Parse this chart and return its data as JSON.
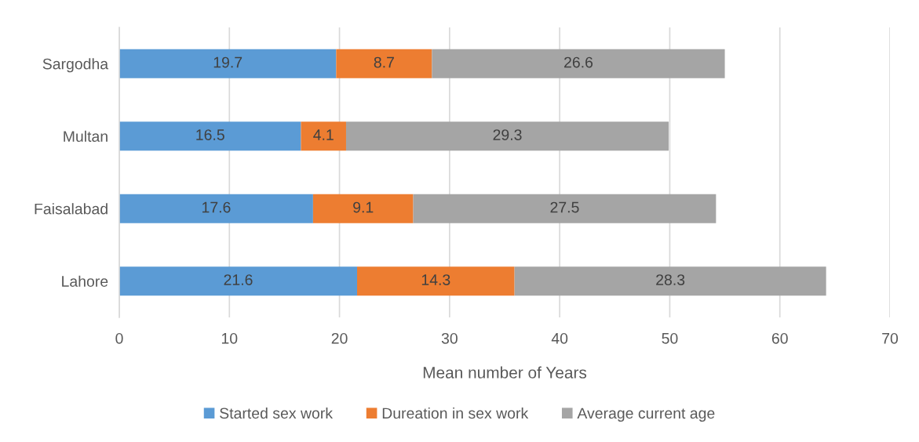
{
  "chart_data": {
    "type": "bar",
    "orientation": "horizontal",
    "stacked": true,
    "xlabel": "Mean number of Years",
    "categories": [
      "Sargodha",
      "Multan",
      "Faisalabad",
      "Lahore"
    ],
    "series": [
      {
        "name": "Started sex work",
        "color": "#5b9bd5",
        "values": [
          19.7,
          16.5,
          17.6,
          21.6
        ]
      },
      {
        "name": "Dureation in sex work",
        "color": "#ed7d31",
        "values": [
          8.7,
          4.1,
          9.1,
          14.3
        ]
      },
      {
        "name": "Average current age",
        "color": "#a5a5a5",
        "values": [
          26.6,
          29.3,
          27.5,
          28.3
        ]
      }
    ],
    "xlim": [
      0,
      70
    ],
    "xticks": [
      0,
      10,
      20,
      30,
      40,
      50,
      60,
      70
    ],
    "grid": "x",
    "legend": "bottom",
    "data_labels": true
  }
}
